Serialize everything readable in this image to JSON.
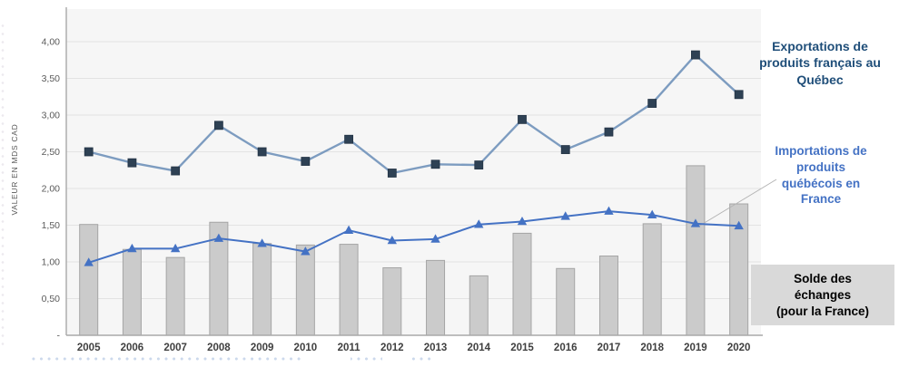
{
  "chart_data": {
    "type": "combo",
    "x": [
      "2005",
      "2006",
      "2007",
      "2008",
      "2009",
      "2010",
      "2011",
      "2012",
      "2013",
      "2014",
      "2015",
      "2016",
      "2017",
      "2018",
      "2019",
      "2020"
    ],
    "series": [
      {
        "name": "Exportations de produits français au Québec",
        "type": "line",
        "marker": "square",
        "line_color": "#7D9CC0",
        "marker_color": "#2E4154",
        "values": [
          2.5,
          2.35,
          2.24,
          2.86,
          2.5,
          2.37,
          2.67,
          2.21,
          2.33,
          2.32,
          2.94,
          2.53,
          2.77,
          3.16,
          3.82,
          3.28
        ]
      },
      {
        "name": "Importations de produits québécois en France",
        "type": "line",
        "marker": "triangle",
        "line_color": "#4472C4",
        "marker_color": "#4472C4",
        "values": [
          0.99,
          1.18,
          1.18,
          1.32,
          1.25,
          1.14,
          1.43,
          1.29,
          1.31,
          1.51,
          1.55,
          1.62,
          1.69,
          1.64,
          1.52,
          1.49
        ]
      },
      {
        "name": "Solde des échanges (pour la France)",
        "type": "bar",
        "fill_color": "#CBCBCB",
        "border_color": "#A5A5A5",
        "values": [
          1.51,
          1.17,
          1.06,
          1.54,
          1.25,
          1.23,
          1.24,
          0.92,
          1.02,
          0.81,
          1.39,
          0.91,
          1.08,
          1.52,
          2.31,
          1.79
        ]
      }
    ],
    "ylabel": "VALEUR EN MDS CAD",
    "xlabel": "",
    "ylim": [
      0,
      4.45
    ],
    "grid": true,
    "legend_position": "right-annotations",
    "y_ticks": {
      "values": [
        0,
        0.5,
        1.0,
        1.5,
        2.0,
        2.5,
        3.0,
        3.5,
        4.0
      ],
      "labels": [
        "-",
        "0,50",
        "1,00",
        "1,50",
        "2,00",
        "2,50",
        "3,00",
        "3,50",
        "4,00"
      ]
    }
  },
  "annotations": {
    "exportations": {
      "text": "Exportations de\nproduits français au\nQuébec",
      "color": "#1F4E79"
    },
    "importations": {
      "text": "Importations de\nproduits\nquébécois en\nFrance",
      "color": "#4472C4"
    },
    "solde": {
      "text": "Solde des\néchanges\n(pour la France)",
      "color": "#000000",
      "bg": "#D9D9D9"
    }
  },
  "colors": {
    "plot_bg": "#F6F6F6",
    "gridline": "#E3E3E3",
    "axis": "#A9A9A9",
    "x_tick_label": "#3F3F3F",
    "y_tick_label": "#5A5A5A",
    "leader_line": "#B3B3B3"
  }
}
